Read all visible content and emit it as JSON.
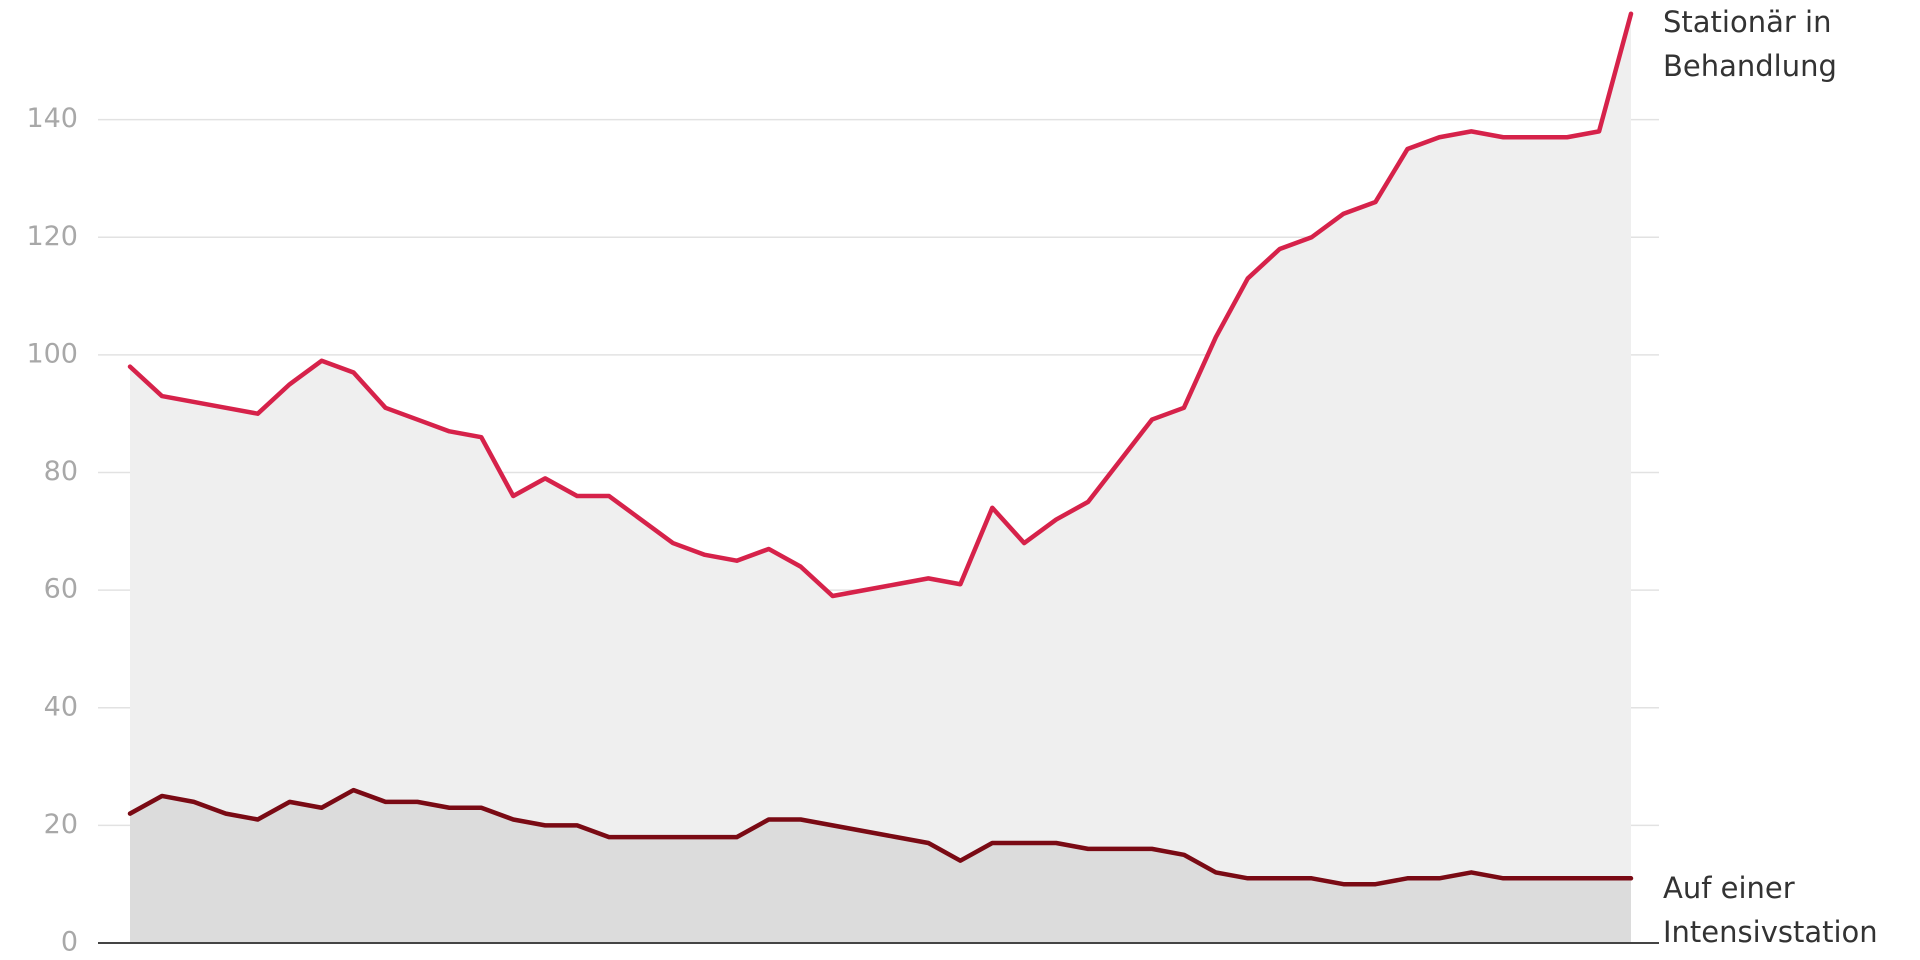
{
  "chart_data": {
    "type": "line",
    "series": [
      {
        "name": "Stationär in Behandlung",
        "color": "#d6224a",
        "area_color": "#efefef",
        "values": [
          98,
          93,
          92,
          91,
          90,
          95,
          99,
          97,
          91,
          89,
          87,
          86,
          76,
          79,
          76,
          76,
          72,
          68,
          66,
          65,
          67,
          64,
          59,
          60,
          61,
          62,
          61,
          74,
          68,
          72,
          75,
          82,
          89,
          91,
          103,
          113,
          118,
          120,
          124,
          126,
          135,
          137,
          138,
          137,
          137,
          137,
          138,
          158
        ]
      },
      {
        "name": "Auf einer Intensivstation",
        "color": "#7a0a14",
        "area_color": "#dcdcdc",
        "values": [
          22,
          25,
          24,
          22,
          21,
          24,
          23,
          26,
          24,
          24,
          23,
          23,
          21,
          20,
          20,
          18,
          18,
          18,
          18,
          18,
          21,
          21,
          20,
          19,
          18,
          17,
          14,
          17,
          17,
          17,
          16,
          16,
          16,
          15,
          12,
          11,
          11,
          11,
          10,
          10,
          11,
          11,
          12,
          11,
          11,
          11,
          11,
          11
        ]
      }
    ],
    "ylim": [
      0,
      160
    ],
    "yticks": [
      0,
      20,
      40,
      60,
      80,
      100,
      120,
      140
    ],
    "grid": true
  }
}
